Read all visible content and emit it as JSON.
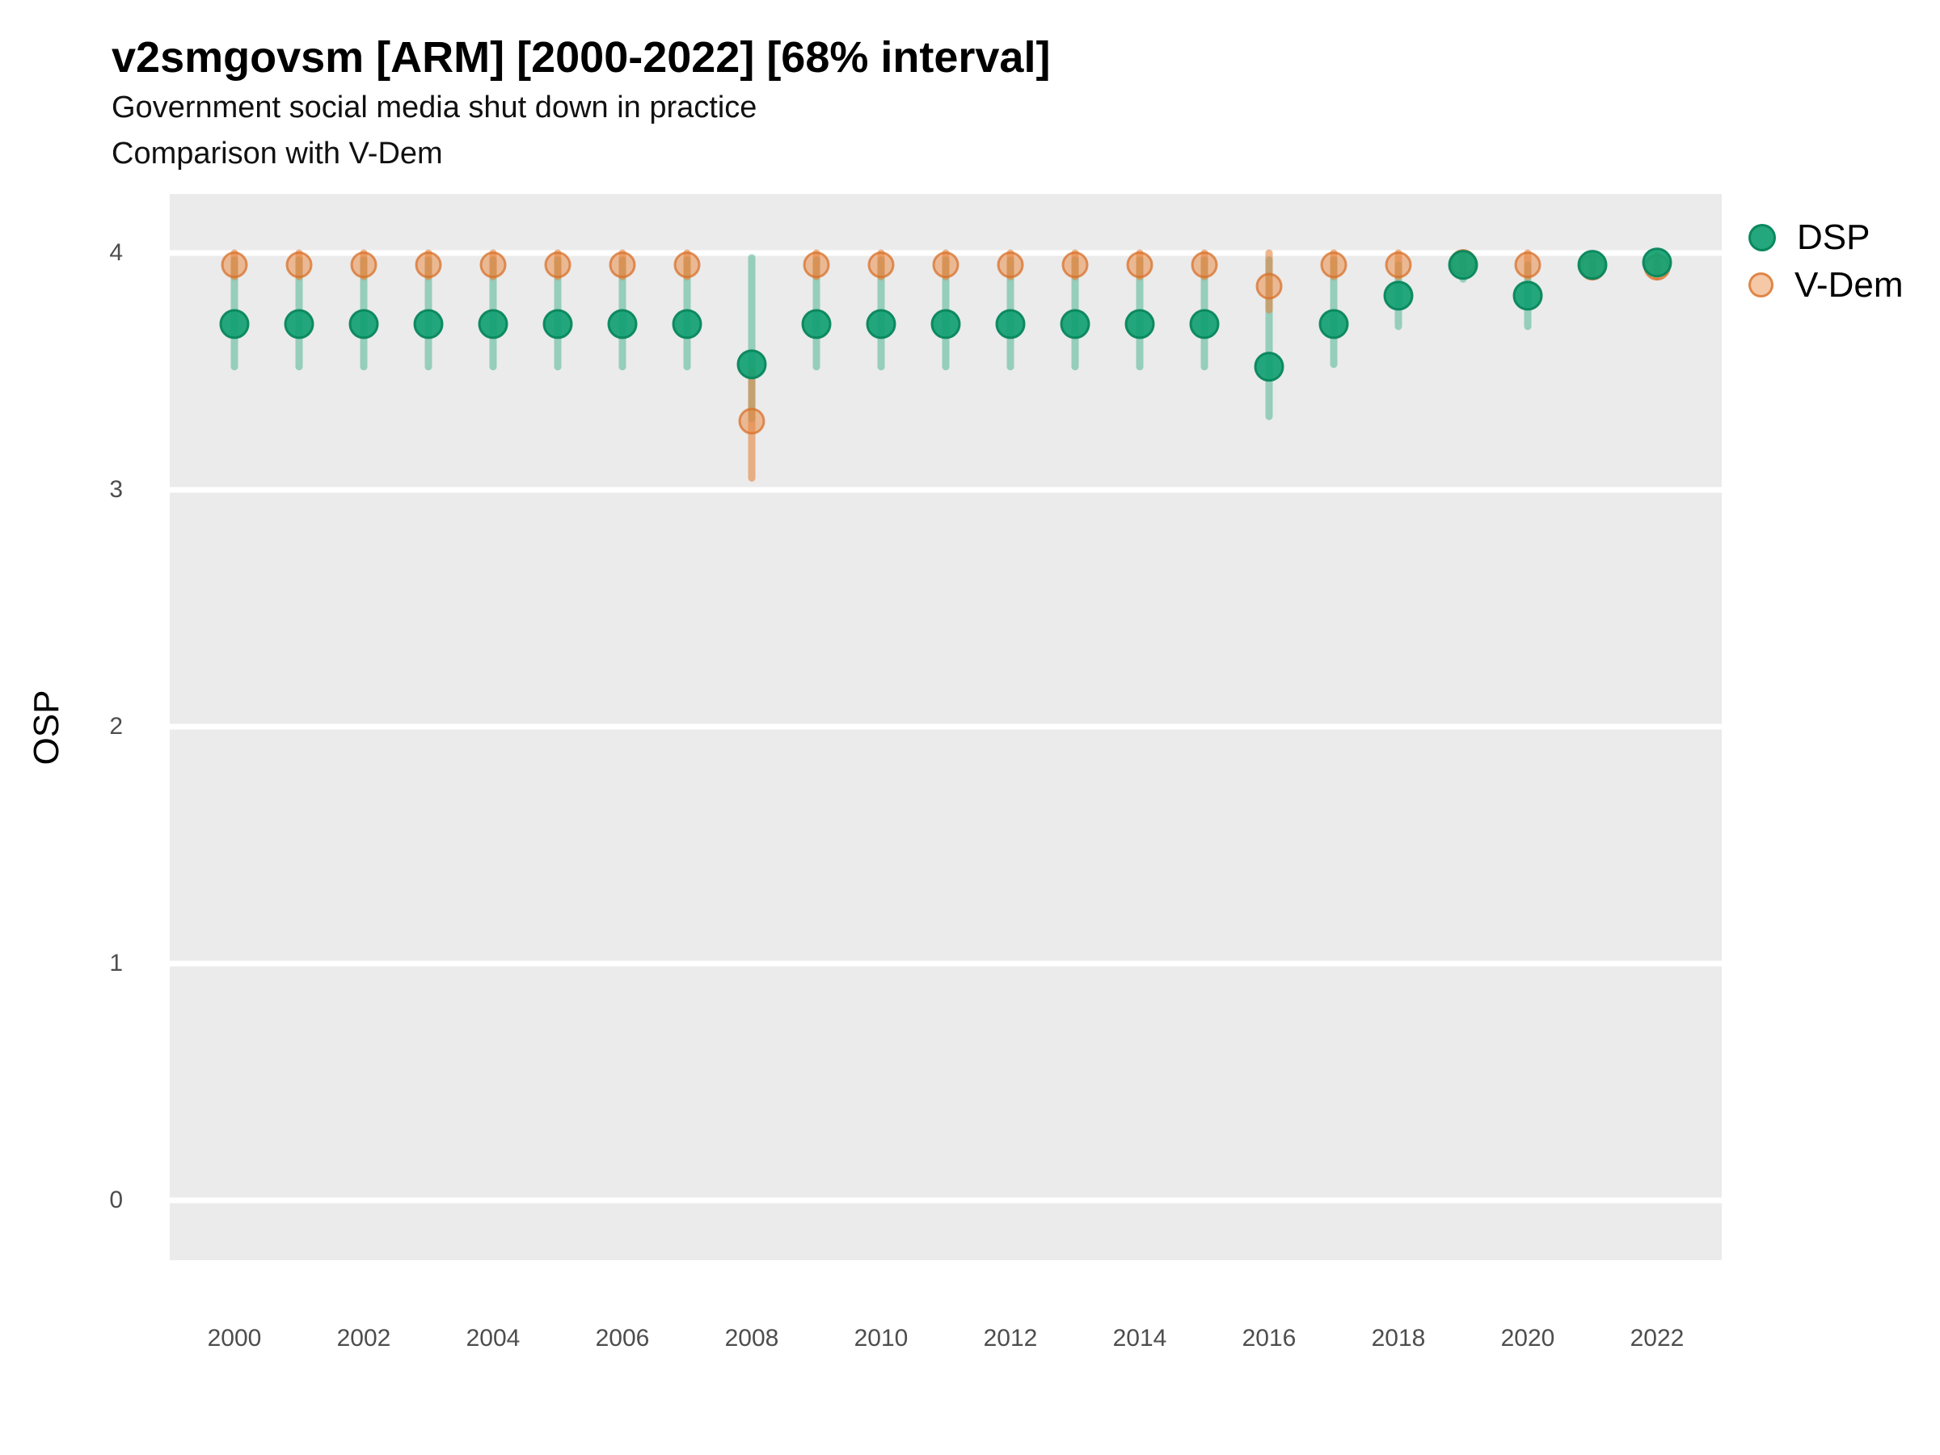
{
  "header": {
    "note": "all header text lives in chart_data"
  },
  "chart_data": {
    "type": "pointrange-scatter",
    "title": "v2smgovsm [ARM] [2000-2022] [68% interval]",
    "subtitle1": "Government social media shut down in practice",
    "subtitle2": "Comparison with V-Dem",
    "ylabel": "OSP",
    "interval": "68%",
    "country": "ARM",
    "variable": "v2smgovsm",
    "x": [
      2000,
      2001,
      2002,
      2003,
      2004,
      2005,
      2006,
      2007,
      2008,
      2009,
      2010,
      2011,
      2012,
      2013,
      2014,
      2015,
      2016,
      2017,
      2018,
      2019,
      2020,
      2021,
      2022
    ],
    "xticks": [
      2000,
      2002,
      2004,
      2006,
      2008,
      2010,
      2012,
      2014,
      2016,
      2018,
      2020,
      2022
    ],
    "yticks": [
      0,
      1,
      2,
      3,
      4
    ],
    "ylim": [
      -0.25,
      4.25
    ],
    "grid": "horizontal-major-white",
    "legend_position": "right-top",
    "panel_background": "#EBEBEB",
    "gridline_color": "#FFFFFF",
    "series": [
      {
        "name": "DSP",
        "marker_fill": "rgba(17,160,113,0.92)",
        "marker_stroke": "rgba(8,134,92,0.95)",
        "bar_color": "rgba(30,166,121,0.42)",
        "points": [
          {
            "year": 2000,
            "est": 3.7,
            "lo": 3.52,
            "hi": 3.97
          },
          {
            "year": 2001,
            "est": 3.7,
            "lo": 3.52,
            "hi": 3.97
          },
          {
            "year": 2002,
            "est": 3.7,
            "lo": 3.52,
            "hi": 3.97
          },
          {
            "year": 2003,
            "est": 3.7,
            "lo": 3.52,
            "hi": 3.97
          },
          {
            "year": 2004,
            "est": 3.7,
            "lo": 3.52,
            "hi": 3.97
          },
          {
            "year": 2005,
            "est": 3.7,
            "lo": 3.52,
            "hi": 3.97
          },
          {
            "year": 2006,
            "est": 3.7,
            "lo": 3.52,
            "hi": 3.97
          },
          {
            "year": 2007,
            "est": 3.7,
            "lo": 3.52,
            "hi": 3.97
          },
          {
            "year": 2008,
            "est": 3.53,
            "lo": 3.3,
            "hi": 3.98
          },
          {
            "year": 2009,
            "est": 3.7,
            "lo": 3.52,
            "hi": 3.97
          },
          {
            "year": 2010,
            "est": 3.7,
            "lo": 3.52,
            "hi": 3.97
          },
          {
            "year": 2011,
            "est": 3.7,
            "lo": 3.52,
            "hi": 3.97
          },
          {
            "year": 2012,
            "est": 3.7,
            "lo": 3.52,
            "hi": 3.97
          },
          {
            "year": 2013,
            "est": 3.7,
            "lo": 3.52,
            "hi": 3.97
          },
          {
            "year": 2014,
            "est": 3.7,
            "lo": 3.52,
            "hi": 3.97
          },
          {
            "year": 2015,
            "est": 3.7,
            "lo": 3.52,
            "hi": 3.97
          },
          {
            "year": 2016,
            "est": 3.52,
            "lo": 3.31,
            "hi": 3.97
          },
          {
            "year": 2017,
            "est": 3.7,
            "lo": 3.53,
            "hi": 3.97
          },
          {
            "year": 2018,
            "est": 3.82,
            "lo": 3.69,
            "hi": 3.95
          },
          {
            "year": 2019,
            "est": 3.95,
            "lo": 3.89,
            "hi": 3.98
          },
          {
            "year": 2020,
            "est": 3.82,
            "lo": 3.69,
            "hi": 3.95
          },
          {
            "year": 2021,
            "est": 3.95,
            "lo": 3.92,
            "hi": 3.98
          },
          {
            "year": 2022,
            "est": 3.96,
            "lo": 3.92,
            "hi": 3.98
          }
        ]
      },
      {
        "name": "V-Dem",
        "marker_fill": "rgba(233,133,59,0.5)",
        "marker_stroke": "rgba(216,112,42,0.75)",
        "bar_color": "rgba(229,132,62,0.6)",
        "points": [
          {
            "year": 2000,
            "est": 3.95,
            "lo": 3.9,
            "hi": 4.0
          },
          {
            "year": 2001,
            "est": 3.95,
            "lo": 3.9,
            "hi": 4.0
          },
          {
            "year": 2002,
            "est": 3.95,
            "lo": 3.9,
            "hi": 4.0
          },
          {
            "year": 2003,
            "est": 3.95,
            "lo": 3.9,
            "hi": 4.0
          },
          {
            "year": 2004,
            "est": 3.95,
            "lo": 3.9,
            "hi": 4.0
          },
          {
            "year": 2005,
            "est": 3.95,
            "lo": 3.9,
            "hi": 4.0
          },
          {
            "year": 2006,
            "est": 3.95,
            "lo": 3.9,
            "hi": 4.0
          },
          {
            "year": 2007,
            "est": 3.95,
            "lo": 3.9,
            "hi": 4.0
          },
          {
            "year": 2008,
            "est": 3.29,
            "lo": 3.05,
            "hi": 3.5
          },
          {
            "year": 2009,
            "est": 3.95,
            "lo": 3.9,
            "hi": 4.0
          },
          {
            "year": 2010,
            "est": 3.95,
            "lo": 3.9,
            "hi": 4.0
          },
          {
            "year": 2011,
            "est": 3.95,
            "lo": 3.9,
            "hi": 4.0
          },
          {
            "year": 2012,
            "est": 3.95,
            "lo": 3.9,
            "hi": 4.0
          },
          {
            "year": 2013,
            "est": 3.95,
            "lo": 3.9,
            "hi": 4.0
          },
          {
            "year": 2014,
            "est": 3.95,
            "lo": 3.9,
            "hi": 4.0
          },
          {
            "year": 2015,
            "est": 3.95,
            "lo": 3.9,
            "hi": 4.0
          },
          {
            "year": 2016,
            "est": 3.86,
            "lo": 3.76,
            "hi": 4.0
          },
          {
            "year": 2017,
            "est": 3.95,
            "lo": 3.9,
            "hi": 4.0
          },
          {
            "year": 2018,
            "est": 3.95,
            "lo": 3.9,
            "hi": 4.0
          },
          {
            "year": 2019,
            "est": 3.96,
            "lo": 3.92,
            "hi": 4.0
          },
          {
            "year": 2020,
            "est": 3.95,
            "lo": 3.9,
            "hi": 4.0
          },
          {
            "year": 2021,
            "est": 3.94,
            "lo": 3.9,
            "hi": 3.99
          },
          {
            "year": 2022,
            "est": 3.94,
            "lo": 3.9,
            "hi": 3.99
          }
        ]
      }
    ]
  }
}
